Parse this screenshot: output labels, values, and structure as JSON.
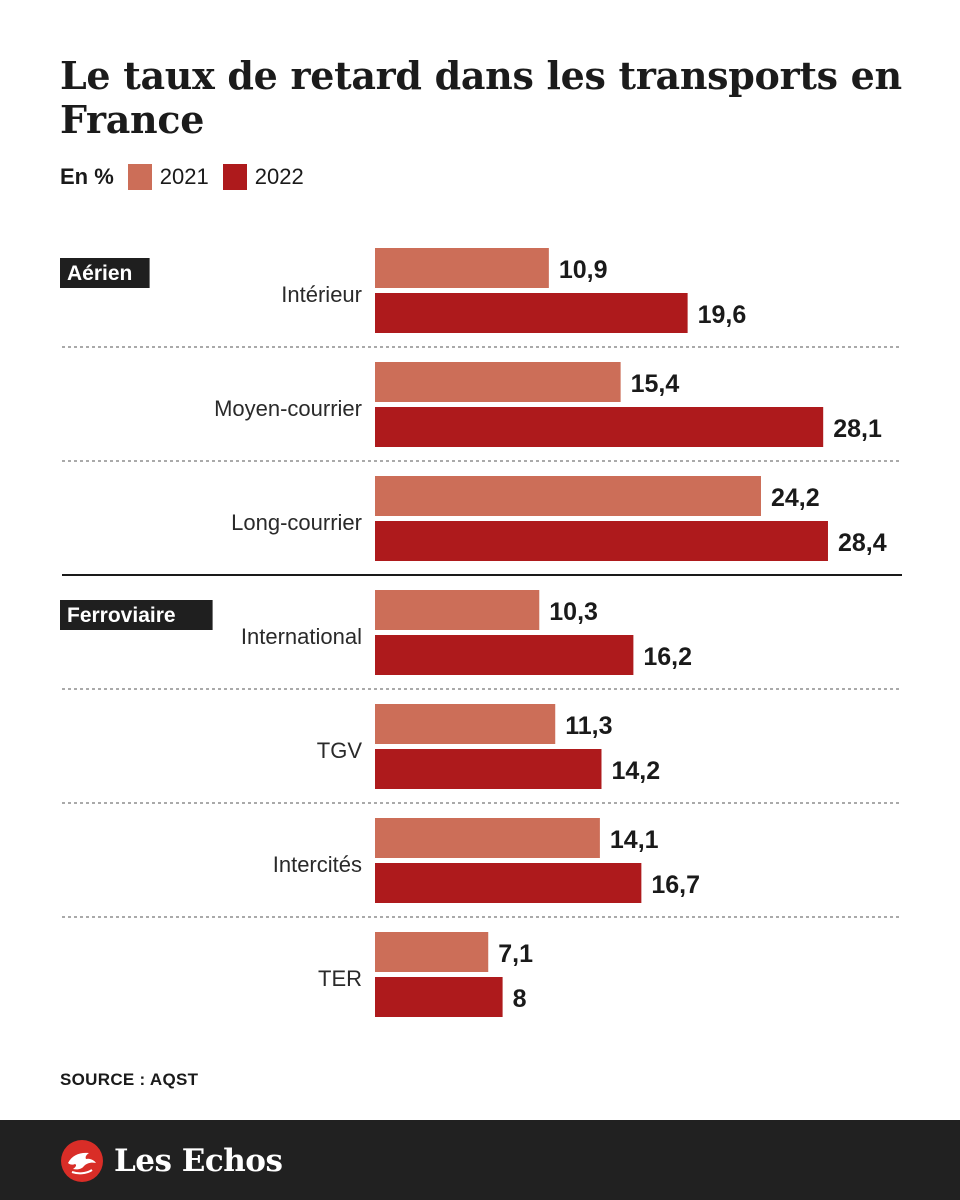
{
  "header": {
    "title": "Le taux de retard dans les transports en France"
  },
  "legend": {
    "unit": "En %",
    "items": [
      {
        "label": "2021",
        "color": "#CC6E58"
      },
      {
        "label": "2022",
        "color": "#AE1A1C"
      }
    ]
  },
  "chart_data": {
    "type": "bar",
    "orientation": "horizontal",
    "title": "Le taux de retard dans les transports en France",
    "unit": "En %",
    "xlim": [
      0,
      30
    ],
    "grid": false,
    "groups": [
      {
        "label": "Aérien",
        "categories": [
          "Intérieur",
          "Moyen-courrier",
          "Long-courrier"
        ]
      },
      {
        "label": "Ferroviaire",
        "categories": [
          "International",
          "TGV",
          "Intercités",
          "TER"
        ]
      }
    ],
    "categories": [
      "Intérieur",
      "Moyen-courrier",
      "Long-courrier",
      "International",
      "TGV",
      "Intercités",
      "TER"
    ],
    "series": [
      {
        "name": "2021",
        "color": "#CC6E58",
        "values": [
          10.9,
          15.4,
          24.2,
          10.3,
          11.3,
          14.1,
          7.1
        ],
        "labels": [
          "10,9",
          "15,4",
          "24,2",
          "10,3",
          "11,3",
          "14,1",
          "7,1"
        ]
      },
      {
        "name": "2022",
        "color": "#AE1A1C",
        "values": [
          19.6,
          28.1,
          28.4,
          16.2,
          14.2,
          16.7,
          8
        ],
        "labels": [
          "19,6",
          "28,1",
          "28,4",
          "16,2",
          "14,2",
          "16,7",
          "8"
        ]
      }
    ]
  },
  "footer": {
    "source": "SOURCE : AQST",
    "brand": "Les Echos"
  }
}
